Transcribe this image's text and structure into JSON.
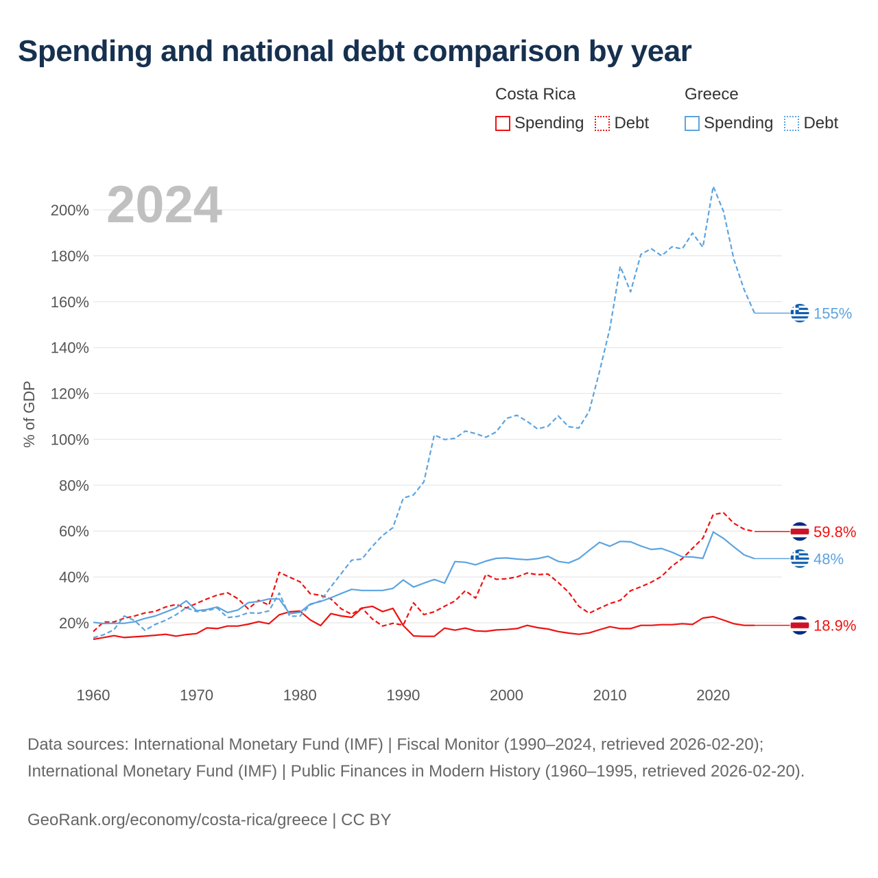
{
  "title": "Spending and national debt comparison by year",
  "legend": {
    "groups": [
      {
        "country": "Costa Rica",
        "spending_label": "Spending",
        "debt_label": "Debt",
        "color": "#ee1111"
      },
      {
        "country": "Greece",
        "spending_label": "Spending",
        "debt_label": "Debt",
        "color": "#5ba3e0"
      }
    ]
  },
  "year_label": "2024",
  "chart_data": {
    "type": "line",
    "title": "Spending and national debt comparison by year",
    "ylabel": "% of GDP",
    "xlabel": "",
    "xlim": [
      1960,
      2024
    ],
    "ylim": [
      0,
      210
    ],
    "x_ticks": [
      1960,
      1970,
      1980,
      1990,
      2000,
      2010,
      2020
    ],
    "y_ticks": [
      20,
      40,
      60,
      80,
      100,
      120,
      140,
      160,
      180,
      200
    ],
    "y_tick_labels": [
      "20%",
      "40%",
      "60%",
      "80%",
      "100%",
      "120%",
      "140%",
      "160%",
      "180%",
      "200%"
    ],
    "series": [
      {
        "name": "Costa Rica Spending",
        "country": "Costa Rica",
        "metric": "Spending",
        "color": "#ee1111",
        "dash": false,
        "end_label": "18.9%",
        "start_year": 1960,
        "values": [
          12.8,
          13.6,
          14.4,
          13.6,
          13.9,
          14.2,
          14.6,
          15.0,
          14.2,
          14.9,
          15.3,
          17.8,
          17.5,
          18.6,
          18.6,
          19.4,
          20.5,
          19.6,
          23.5,
          24.8,
          25.1,
          21.3,
          18.8,
          24.0,
          23.0,
          22.4,
          26.4,
          27.2,
          24.9,
          26.3,
          18.8,
          14.3,
          14.1,
          14.1,
          17.7,
          16.8,
          17.7,
          16.5,
          16.3,
          16.9,
          17.1,
          17.5,
          18.9,
          17.9,
          17.3,
          16.2,
          15.5,
          15.0,
          15.6,
          17.0,
          18.3,
          17.5,
          17.5,
          18.9,
          18.9,
          19.2,
          19.2,
          19.6,
          19.3,
          22.1,
          22.7,
          21.2,
          19.6,
          18.9,
          18.9
        ]
      },
      {
        "name": "Costa Rica Debt",
        "country": "Costa Rica",
        "metric": "Debt",
        "color": "#ee1111",
        "dash": true,
        "end_label": "59.8%",
        "start_year": 1960,
        "values": [
          16.2,
          20.4,
          20.4,
          22.0,
          23.0,
          24.3,
          25.0,
          26.9,
          28.0,
          26.5,
          28.5,
          30.4,
          32.1,
          33.1,
          30.5,
          26.1,
          29.8,
          27.7,
          42.0,
          39.9,
          37.9,
          32.7,
          32.0,
          30.4,
          26.1,
          23.7,
          26.5,
          21.7,
          18.6,
          19.8,
          19.0,
          28.7,
          23.6,
          24.8,
          27.2,
          29.5,
          34.0,
          30.8,
          41.1,
          39.0,
          39.2,
          40.0,
          41.7,
          41.0,
          41.3,
          37.6,
          33.4,
          27.2,
          24.2,
          26.4,
          28.4,
          29.8,
          34.0,
          35.7,
          37.7,
          40.2,
          44.7,
          48.0,
          52.5,
          56.9,
          67.2,
          68.0,
          63.4,
          60.8,
          59.8
        ]
      },
      {
        "name": "Greece Spending",
        "country": "Greece",
        "metric": "Spending",
        "color": "#5ba3e0",
        "dash": false,
        "end_label": "48%",
        "start_year": 1960,
        "values": [
          20.2,
          19.7,
          19.8,
          19.8,
          20.5,
          21.9,
          23.0,
          24.7,
          26.5,
          29.6,
          25.3,
          25.8,
          26.9,
          24.5,
          25.6,
          28.8,
          29.3,
          30.4,
          30.4,
          24.0,
          24.6,
          28.2,
          29.3,
          30.9,
          32.8,
          34.6,
          34.1,
          34.1,
          34.1,
          35.0,
          38.7,
          35.6,
          37.3,
          38.9,
          37.3,
          46.7,
          46.4,
          45.3,
          46.9,
          48.1,
          48.3,
          47.8,
          47.5,
          48.0,
          49.0,
          46.8,
          46.1,
          48.0,
          51.6,
          55.1,
          53.4,
          55.5,
          55.3,
          53.5,
          52.0,
          52.4,
          50.8,
          48.8,
          48.7,
          48.1,
          59.6,
          56.8,
          53.1,
          49.6,
          48.0
        ]
      },
      {
        "name": "Greece Debt",
        "country": "Greece",
        "metric": "Debt",
        "color": "#5ba3e0",
        "dash": true,
        "end_label": "155%",
        "start_year": 1960,
        "values": [
          13.5,
          14.8,
          17.0,
          23.0,
          21.0,
          16.7,
          19.3,
          21.1,
          23.5,
          26.6,
          24.9,
          25.3,
          26.4,
          22.3,
          22.8,
          24.4,
          24.2,
          25.2,
          33.0,
          22.9,
          22.9,
          27.9,
          29.6,
          35.7,
          41.5,
          47.3,
          47.8,
          53.3,
          58.1,
          61.5,
          74.4,
          75.8,
          81.5,
          101.9,
          99.9,
          100.4,
          103.6,
          102.5,
          100.9,
          103.2,
          109.1,
          110.5,
          107.8,
          104.5,
          105.7,
          110.2,
          105.5,
          104.9,
          112.3,
          129.7,
          148.3,
          175.4,
          164.3,
          180.6,
          183.1,
          180.0,
          183.9,
          183.0,
          189.9,
          183.7,
          210.3,
          199.3,
          178.4,
          165.2,
          155.0
        ]
      }
    ]
  },
  "footer": {
    "sources": "Data sources: International Monetary Fund (IMF) | Fiscal Monitor (1990–2024, retrieved 2026-02-20); International Monetary Fund (IMF) | Public Finances in Modern History (1960–1995, retrieved 2026-02-20).",
    "credit": "GeoRank.org/economy/costa-rica/greece | CC BY"
  }
}
